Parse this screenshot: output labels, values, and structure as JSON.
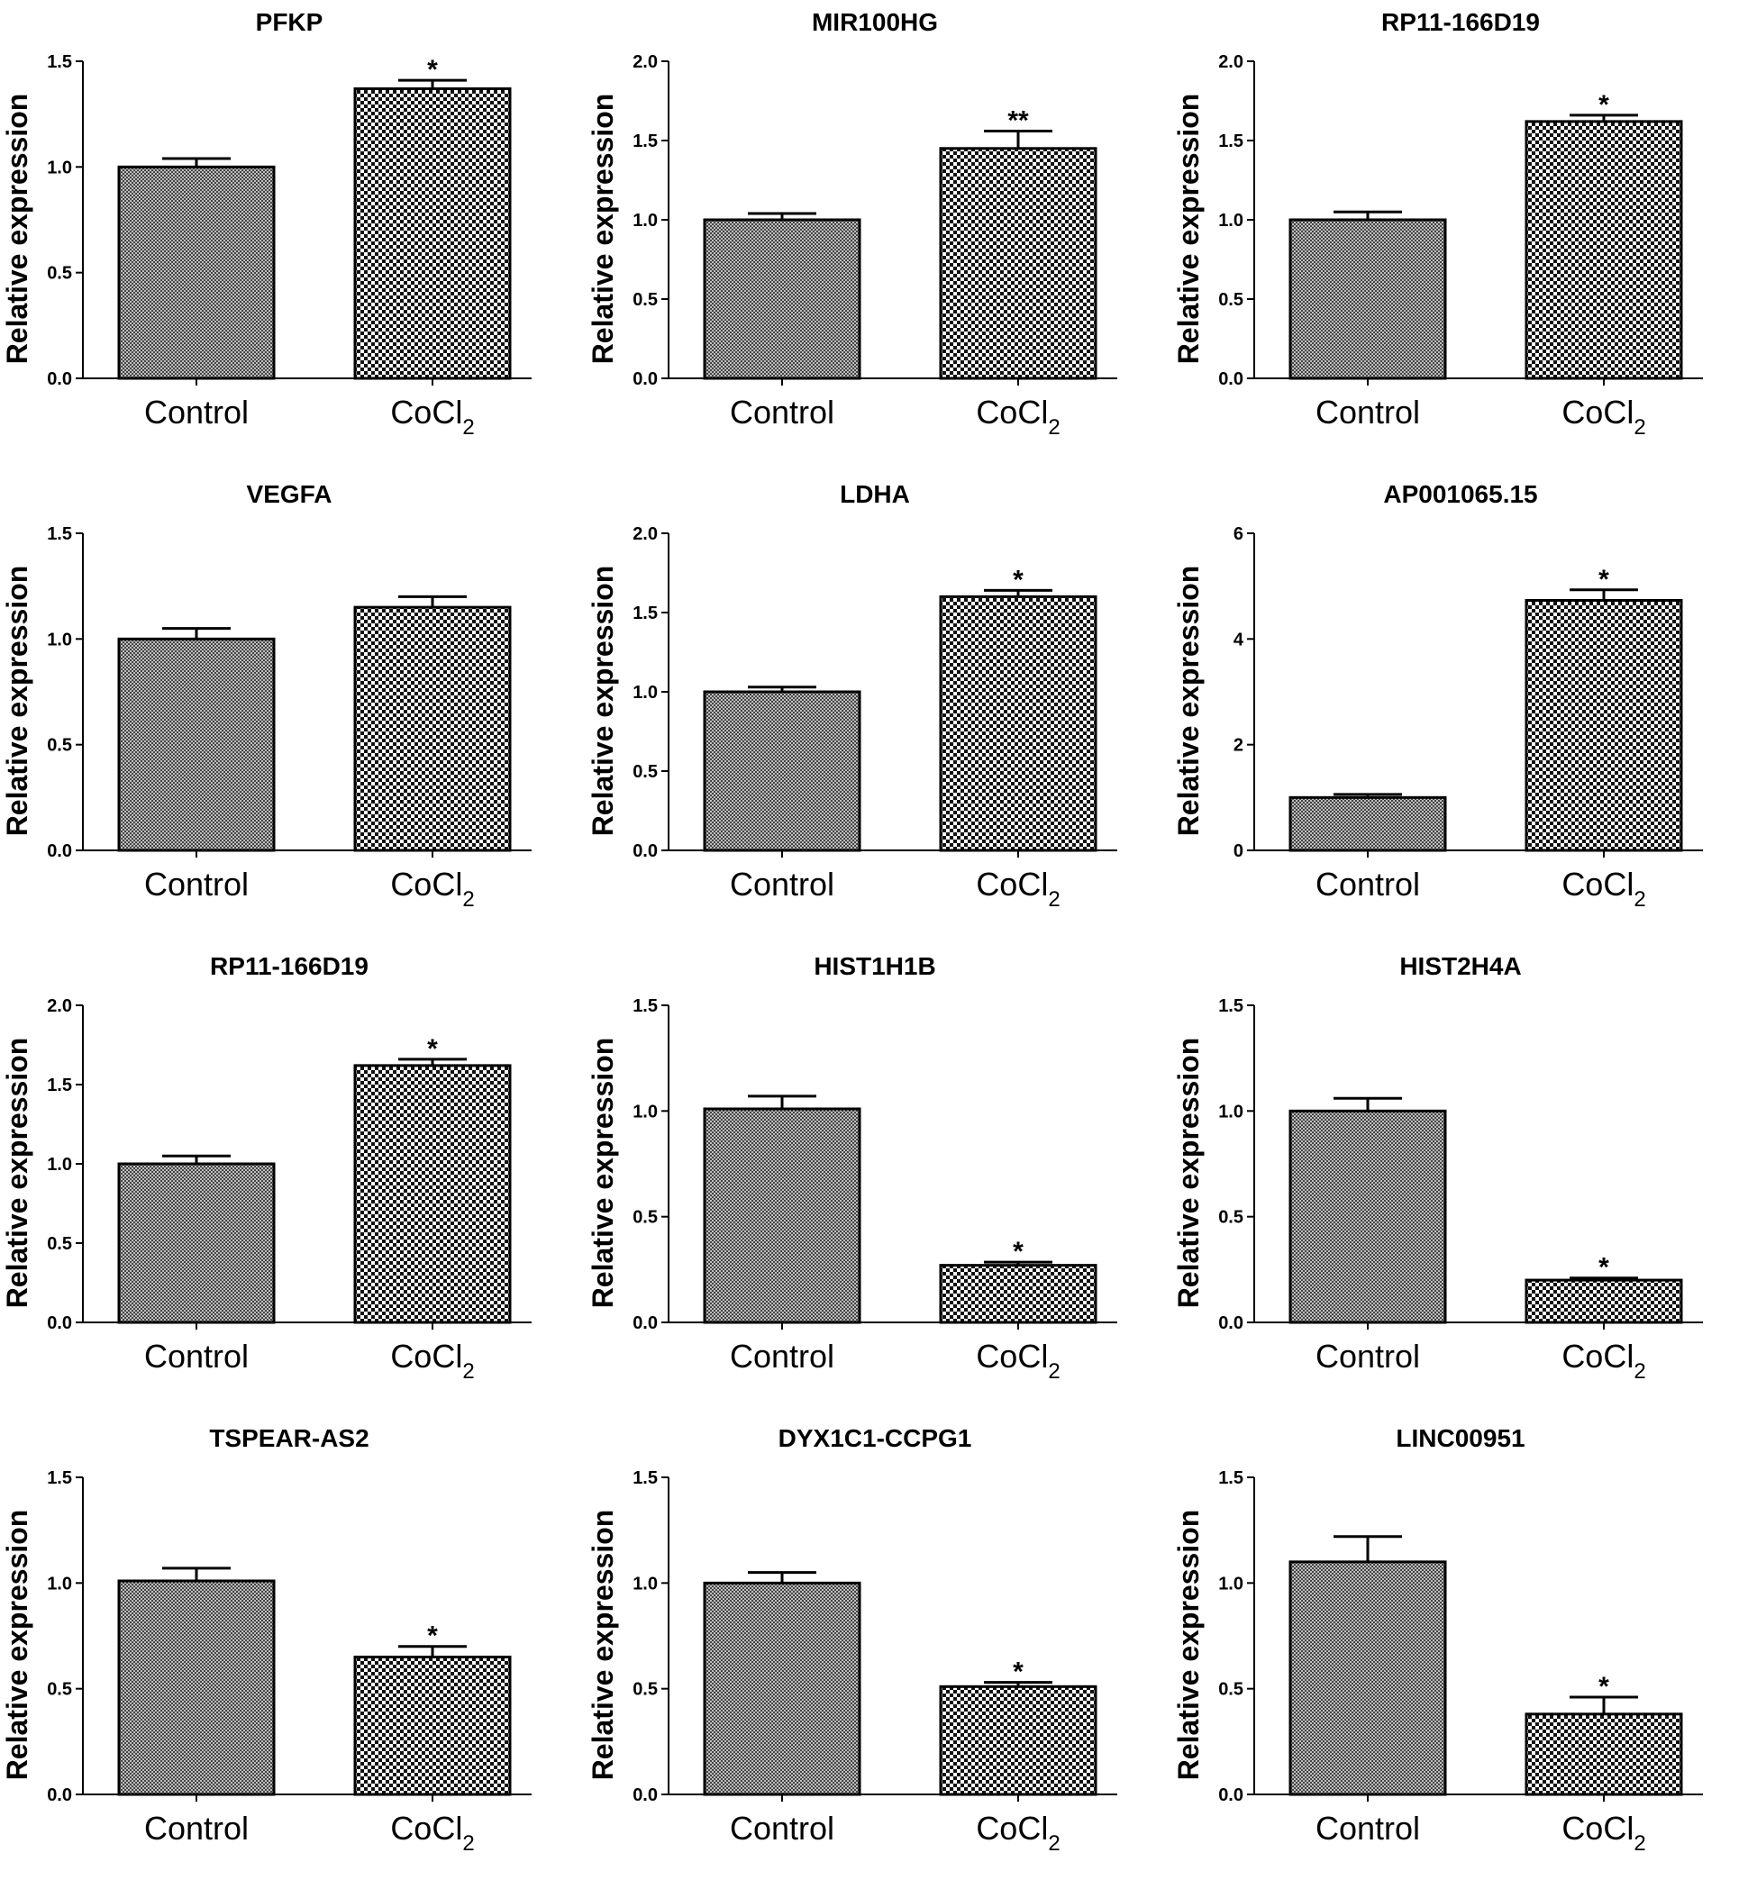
{
  "chart_data": [
    {
      "type": "bar",
      "title": "PFKP",
      "ylabel": "Relative expression",
      "categories": [
        "Control",
        "CoCl2"
      ],
      "category_labels": [
        {
          "main": "Control",
          "sub": ""
        },
        {
          "main": "CoCl",
          "sub": "2"
        }
      ],
      "values": [
        1.0,
        1.37
      ],
      "errors": [
        0.04,
        0.04
      ],
      "significance": [
        "",
        "*"
      ],
      "ylim": [
        0,
        1.5
      ],
      "yticks": [
        "0.0",
        "0.5",
        "1.0",
        "1.5"
      ]
    },
    {
      "type": "bar",
      "title": "MIR100HG",
      "ylabel": "Relative expression",
      "categories": [
        "Control",
        "CoCl2"
      ],
      "category_labels": [
        {
          "main": "Control",
          "sub": ""
        },
        {
          "main": "CoCl",
          "sub": "2"
        }
      ],
      "values": [
        1.0,
        1.45
      ],
      "errors": [
        0.04,
        0.11
      ],
      "significance": [
        "",
        "**"
      ],
      "ylim": [
        0,
        2.0
      ],
      "yticks": [
        "0.0",
        "0.5",
        "1.0",
        "1.5",
        "2.0"
      ]
    },
    {
      "type": "bar",
      "title": "RP11-166D19",
      "ylabel": "Relative expression",
      "categories": [
        "Control",
        "CoCl2"
      ],
      "category_labels": [
        {
          "main": "Control",
          "sub": ""
        },
        {
          "main": "CoCl",
          "sub": "2"
        }
      ],
      "values": [
        1.0,
        1.62
      ],
      "errors": [
        0.05,
        0.04
      ],
      "significance": [
        "",
        "*"
      ],
      "ylim": [
        0,
        2.0
      ],
      "yticks": [
        "0.0",
        "0.5",
        "1.0",
        "1.5",
        "2.0"
      ]
    },
    {
      "type": "bar",
      "title": "VEGFA",
      "ylabel": "Relative expression",
      "categories": [
        "Control",
        "CoCl2"
      ],
      "category_labels": [
        {
          "main": "Control",
          "sub": ""
        },
        {
          "main": "CoCl",
          "sub": "2"
        }
      ],
      "values": [
        1.0,
        1.15
      ],
      "errors": [
        0.05,
        0.05
      ],
      "significance": [
        "",
        ""
      ],
      "ylim": [
        0,
        1.5
      ],
      "yticks": [
        "0.0",
        "0.5",
        "1.0",
        "1.5"
      ]
    },
    {
      "type": "bar",
      "title": "LDHA",
      "ylabel": "Relative expression",
      "categories": [
        "Control",
        "CoCl2"
      ],
      "category_labels": [
        {
          "main": "Control",
          "sub": ""
        },
        {
          "main": "CoCl",
          "sub": "2"
        }
      ],
      "values": [
        1.0,
        1.6
      ],
      "errors": [
        0.03,
        0.04
      ],
      "significance": [
        "",
        "*"
      ],
      "ylim": [
        0,
        2.0
      ],
      "yticks": [
        "0.0",
        "0.5",
        "1.0",
        "1.5",
        "2.0"
      ]
    },
    {
      "type": "bar",
      "title": "AP001065.15",
      "ylabel": "Relative expression",
      "categories": [
        "Control",
        "CoCl2"
      ],
      "category_labels": [
        {
          "main": "Control",
          "sub": ""
        },
        {
          "main": "CoCl",
          "sub": "2"
        }
      ],
      "values": [
        1.0,
        4.73
      ],
      "errors": [
        0.06,
        0.2
      ],
      "significance": [
        "",
        "*"
      ],
      "ylim": [
        0,
        6
      ],
      "yticks": [
        "0",
        "2",
        "4",
        "6"
      ]
    },
    {
      "type": "bar",
      "title": "RP11-166D19",
      "ylabel": "Relative expression",
      "categories": [
        "Control",
        "CoCl2"
      ],
      "category_labels": [
        {
          "main": "Control",
          "sub": ""
        },
        {
          "main": "CoCl",
          "sub": "2"
        }
      ],
      "values": [
        1.0,
        1.62
      ],
      "errors": [
        0.05,
        0.04
      ],
      "significance": [
        "",
        "*"
      ],
      "ylim": [
        0,
        2.0
      ],
      "yticks": [
        "0.0",
        "0.5",
        "1.0",
        "1.5",
        "2.0"
      ]
    },
    {
      "type": "bar",
      "title": "HIST1H1B",
      "ylabel": "Relative expression",
      "categories": [
        "Control",
        "CoCl2"
      ],
      "category_labels": [
        {
          "main": "Control",
          "sub": ""
        },
        {
          "main": "CoCl",
          "sub": "2"
        }
      ],
      "values": [
        1.01,
        0.27
      ],
      "errors": [
        0.06,
        0.015
      ],
      "significance": [
        "",
        "*"
      ],
      "ylim": [
        0,
        1.5
      ],
      "yticks": [
        "0.0",
        "0.5",
        "1.0",
        "1.5"
      ]
    },
    {
      "type": "bar",
      "title": "HIST2H4A",
      "ylabel": "Relative expression",
      "categories": [
        "Control",
        "CoCl2"
      ],
      "category_labels": [
        {
          "main": "Control",
          "sub": ""
        },
        {
          "main": "CoCl",
          "sub": "2"
        }
      ],
      "values": [
        1.0,
        0.2
      ],
      "errors": [
        0.06,
        0.01
      ],
      "significance": [
        "",
        "*"
      ],
      "ylim": [
        0,
        1.5
      ],
      "yticks": [
        "0.0",
        "0.5",
        "1.0",
        "1.5"
      ]
    },
    {
      "type": "bar",
      "title": "TSPEAR-AS2",
      "ylabel": "Relative expression",
      "categories": [
        "Control",
        "CoCl2"
      ],
      "category_labels": [
        {
          "main": "Control",
          "sub": ""
        },
        {
          "main": "CoCl",
          "sub": "2"
        }
      ],
      "values": [
        1.01,
        0.65
      ],
      "errors": [
        0.06,
        0.05
      ],
      "significance": [
        "",
        "*"
      ],
      "ylim": [
        0,
        1.5
      ],
      "yticks": [
        "0.0",
        "0.5",
        "1.0",
        "1.5"
      ]
    },
    {
      "type": "bar",
      "title": "DYX1C1-CCPG1",
      "ylabel": "Relative expression",
      "categories": [
        "Control",
        "CoCl2"
      ],
      "category_labels": [
        {
          "main": "Control",
          "sub": ""
        },
        {
          "main": "CoCl",
          "sub": "2"
        }
      ],
      "values": [
        1.0,
        0.51
      ],
      "errors": [
        0.05,
        0.02
      ],
      "significance": [
        "",
        "*"
      ],
      "ylim": [
        0,
        1.5
      ],
      "yticks": [
        "0.0",
        "0.5",
        "1.0",
        "1.5"
      ]
    },
    {
      "type": "bar",
      "title": "LINC00951",
      "ylabel": "Relative expression",
      "categories": [
        "Control",
        "CoCl2"
      ],
      "category_labels": [
        {
          "main": "Control",
          "sub": ""
        },
        {
          "main": "CoCl",
          "sub": "2"
        }
      ],
      "values": [
        1.1,
        0.38
      ],
      "errors": [
        0.12,
        0.08
      ],
      "significance": [
        "",
        "*"
      ],
      "ylim": [
        0,
        1.5
      ],
      "yticks": [
        "0.0",
        "0.5",
        "1.0",
        "1.5"
      ]
    }
  ]
}
